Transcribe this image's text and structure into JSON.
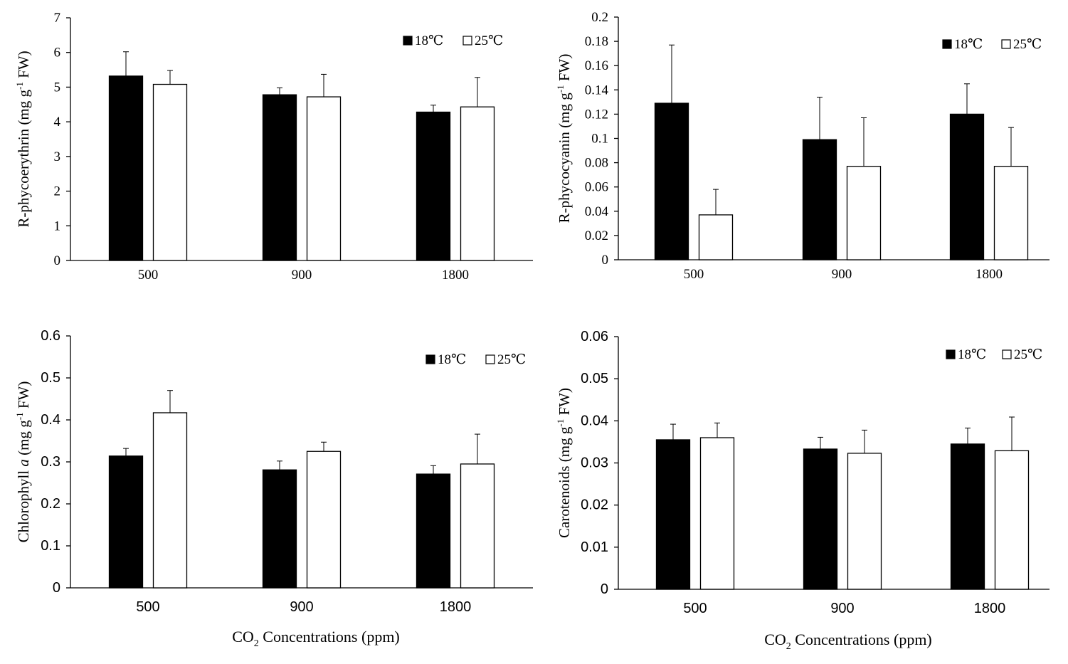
{
  "chart_data": [
    {
      "type": "bar",
      "panel": "top-left",
      "categories": [
        "500",
        "900",
        "1800"
      ],
      "series": [
        {
          "name": "18℃",
          "values": [
            5.32,
            4.78,
            4.28
          ],
          "errors": [
            0.7,
            0.2,
            0.2
          ],
          "color": "#000000"
        },
        {
          "name": "25℃",
          "values": [
            5.08,
            4.72,
            4.43
          ],
          "errors": [
            0.4,
            0.65,
            0.85
          ],
          "color": "#ffffff"
        }
      ],
      "ylabel": "R-phycoerythrin (mg g-1 FW)",
      "ylabel_parts": {
        "pre": "R-phycoerythrin (mg g",
        "sup": "-1",
        "post": " FW)"
      },
      "ylim": [
        0,
        7
      ],
      "yticks": [
        "0",
        "1",
        "2",
        "3",
        "4",
        "5",
        "6",
        "7"
      ],
      "xlabel": "",
      "legend": "top-right",
      "tick_font": "serif"
    },
    {
      "type": "bar",
      "panel": "top-right",
      "categories": [
        "500",
        "900",
        "1800"
      ],
      "series": [
        {
          "name": "18℃",
          "values": [
            0.129,
            0.099,
            0.12
          ],
          "errors": [
            0.048,
            0.035,
            0.025
          ],
          "color": "#000000"
        },
        {
          "name": "25℃",
          "values": [
            0.037,
            0.077,
            0.077
          ],
          "errors": [
            0.021,
            0.04,
            0.032
          ],
          "color": "#ffffff"
        }
      ],
      "ylabel": "R-phycocyanin (mg g-1 FW)",
      "ylabel_parts": {
        "pre": "R-phycocyanin (mg g",
        "sup": "-1",
        "post": " FW)"
      },
      "ylim": [
        0,
        0.2
      ],
      "yticks": [
        "0",
        "0.02",
        "0.04",
        "0.06",
        "0.08",
        "0.1",
        "0.12",
        "0.14",
        "0.16",
        "0.18",
        "0.2"
      ],
      "xlabel": "",
      "legend": "top-right",
      "tick_font": "serif"
    },
    {
      "type": "bar",
      "panel": "bottom-left",
      "categories": [
        "500",
        "900",
        "1800"
      ],
      "series": [
        {
          "name": "18℃",
          "values": [
            0.314,
            0.281,
            0.271
          ],
          "errors": [
            0.018,
            0.021,
            0.02
          ],
          "color": "#000000"
        },
        {
          "name": "25℃",
          "values": [
            0.417,
            0.325,
            0.295
          ],
          "errors": [
            0.053,
            0.022,
            0.071
          ],
          "color": "#ffffff"
        }
      ],
      "ylabel": "Chlorophyll a (mg g-1 FW)",
      "ylabel_parts": {
        "pre": "Chlorophyll ",
        "ital": "a",
        "pre2": " (mg g",
        "sup": "-1",
        "post": " FW)"
      },
      "ylim": [
        0,
        0.6
      ],
      "yticks": [
        "0",
        "0.1",
        "0.2",
        "0.3",
        "0.4",
        "0.5",
        "0.6"
      ],
      "xlabel": "CO2 Concentrations (ppm)",
      "xlabel_parts": {
        "pre": "CO",
        "sub": "2",
        "post": " Concentrations (ppm)"
      },
      "legend": "top-right",
      "tick_font": "sans"
    },
    {
      "type": "bar",
      "panel": "bottom-right",
      "categories": [
        "500",
        "900",
        "1800"
      ],
      "series": [
        {
          "name": "18℃",
          "values": [
            0.0355,
            0.0333,
            0.0345
          ],
          "errors": [
            0.0037,
            0.0028,
            0.0038
          ],
          "color": "#000000"
        },
        {
          "name": "25℃",
          "values": [
            0.036,
            0.0323,
            0.0329
          ],
          "errors": [
            0.0035,
            0.0055,
            0.008
          ],
          "color": "#ffffff"
        }
      ],
      "ylabel": "Carotenoids (mg g-1 FW)",
      "ylabel_parts": {
        "pre": "Carotenoids (mg g",
        "sup": "-1",
        "post": " FW)"
      },
      "ylim": [
        0,
        0.06
      ],
      "yticks": [
        "0",
        "0.01",
        "0.02",
        "0.03",
        "0.04",
        "0.05",
        "0.06"
      ],
      "xlabel": "CO2 Concentrations (ppm)",
      "xlabel_parts": {
        "pre": "CO",
        "sub": "2",
        "post": " Concentrations (ppm)"
      },
      "legend": "top-right",
      "tick_font": "sans"
    }
  ]
}
